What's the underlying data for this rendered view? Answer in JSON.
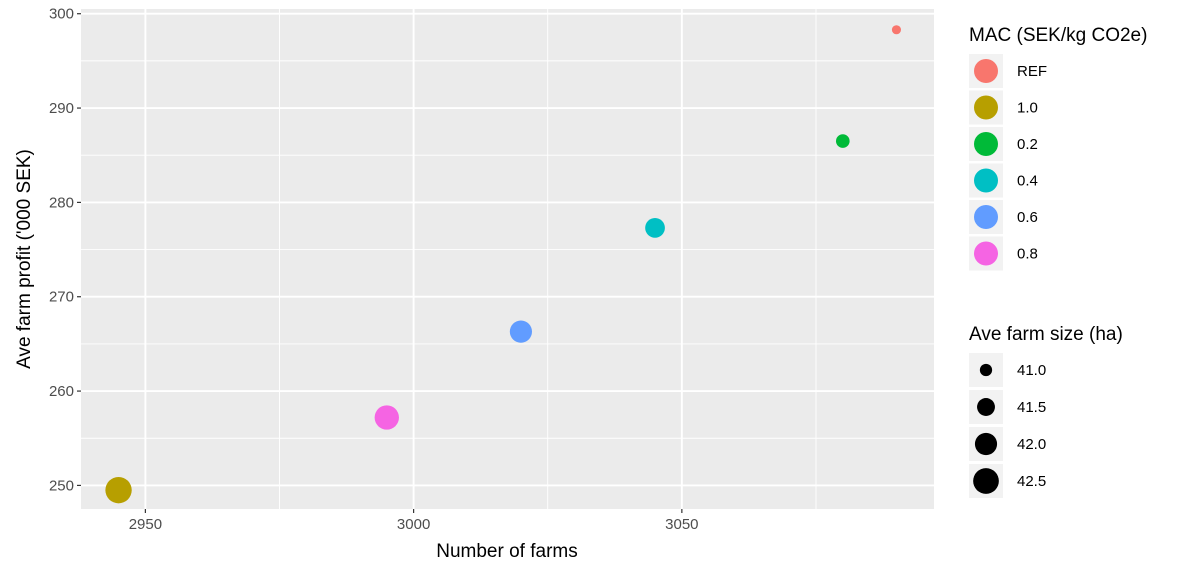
{
  "chart_data": {
    "type": "scatter",
    "xlabel": "Number of farms",
    "ylabel": "Ave farm profit ('000 SEK)",
    "xlim": [
      2938,
      3097
    ],
    "ylim": [
      247.5,
      300.5
    ],
    "x_ticks": [
      2950,
      3000,
      3050
    ],
    "y_ticks": [
      250,
      260,
      270,
      280,
      290,
      300
    ],
    "grid": true,
    "legend_position": "right",
    "color_legend": {
      "title": "MAC (SEK/kg CO2e)",
      "entries": [
        {
          "label": "REF",
          "color": "#F8766D"
        },
        {
          "label": "1.0",
          "color": "#B79F00"
        },
        {
          "label": "0.2",
          "color": "#00BA38"
        },
        {
          "label": "0.4",
          "color": "#00BFC4"
        },
        {
          "label": "0.6",
          "color": "#619CFF"
        },
        {
          "label": "0.8",
          "color": "#F564E3"
        }
      ]
    },
    "size_legend": {
      "title": "Ave farm size (ha)",
      "entries": [
        {
          "label": "41.0",
          "value": 41.0
        },
        {
          "label": "41.5",
          "value": 41.5
        },
        {
          "label": "42.0",
          "value": 42.0
        },
        {
          "label": "42.5",
          "value": 42.5
        }
      ]
    },
    "points": [
      {
        "mac": "REF",
        "x": 3090,
        "y": 298.3,
        "size": 40.8,
        "color": "#F8766D"
      },
      {
        "mac": "1.0",
        "x": 2945,
        "y": 249.5,
        "size": 42.6,
        "color": "#B79F00"
      },
      {
        "mac": "0.2",
        "x": 3080,
        "y": 286.5,
        "size": 41.1,
        "color": "#00BA38"
      },
      {
        "mac": "0.4",
        "x": 3045,
        "y": 277.3,
        "size": 41.7,
        "color": "#00BFC4"
      },
      {
        "mac": "0.6",
        "x": 3020,
        "y": 266.3,
        "size": 42.0,
        "color": "#619CFF"
      },
      {
        "mac": "0.8",
        "x": 2995,
        "y": 257.2,
        "size": 42.3,
        "color": "#F564E3"
      }
    ]
  }
}
